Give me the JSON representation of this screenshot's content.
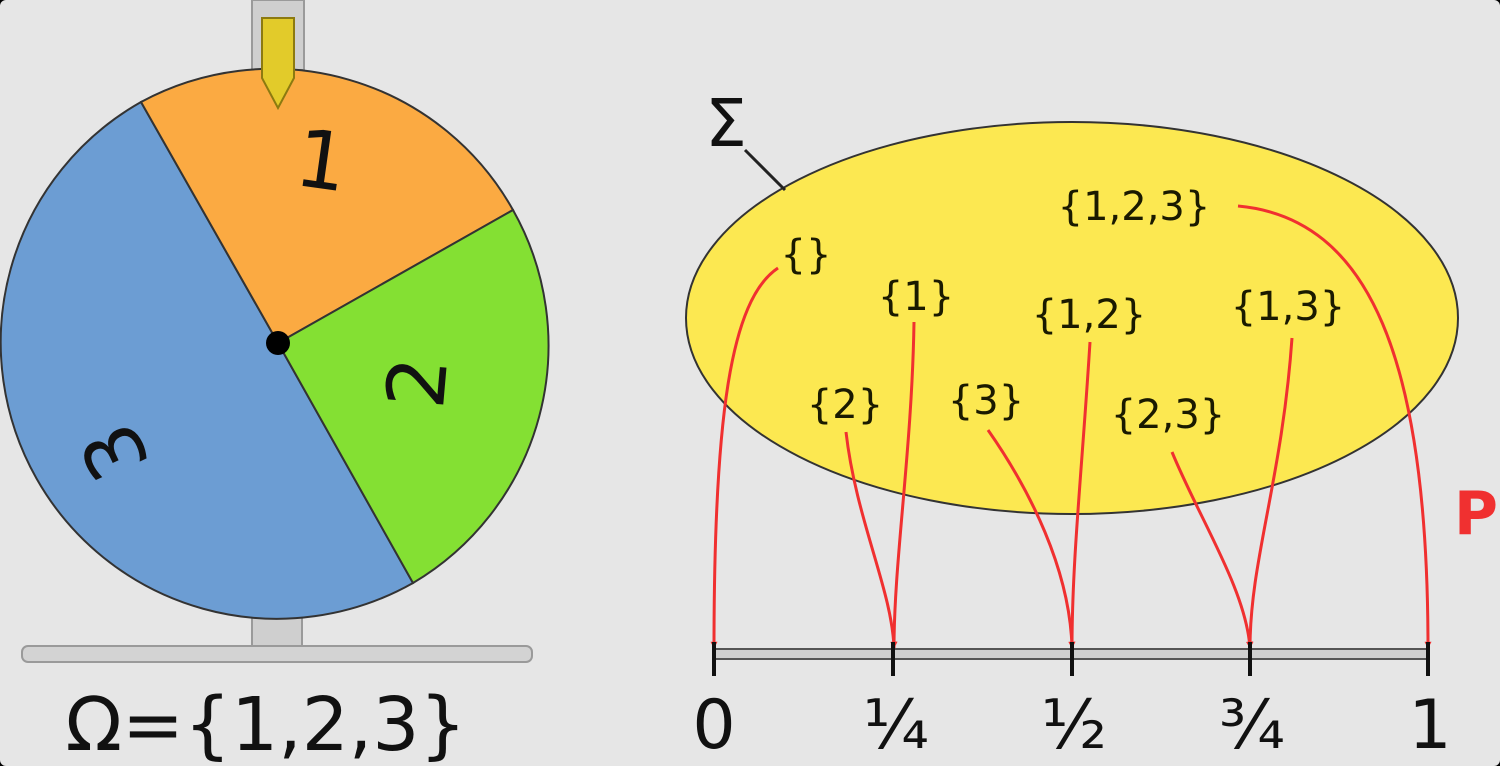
{
  "wheel": {
    "sector_labels": [
      "1",
      "2",
      "3"
    ],
    "colors": {
      "sector1": "#fbaa42",
      "sector2": "#84e033",
      "sector3": "#6c9dd3",
      "pointer": "#e2cb2a",
      "stand": "#cfcfcf"
    }
  },
  "sample_space": "Ω={1,2,3}",
  "sigma_label": "Σ",
  "sigma_fill": "#fce851",
  "events": [
    "{}",
    "{1}",
    "{2}",
    "{3}",
    "{1,2}",
    "{1,3}",
    "{2,3}",
    "{1,2,3}"
  ],
  "prob_label": "P",
  "prob_color": "#f03030",
  "ticks": [
    "0",
    "¼",
    "½",
    "¾",
    "1"
  ]
}
